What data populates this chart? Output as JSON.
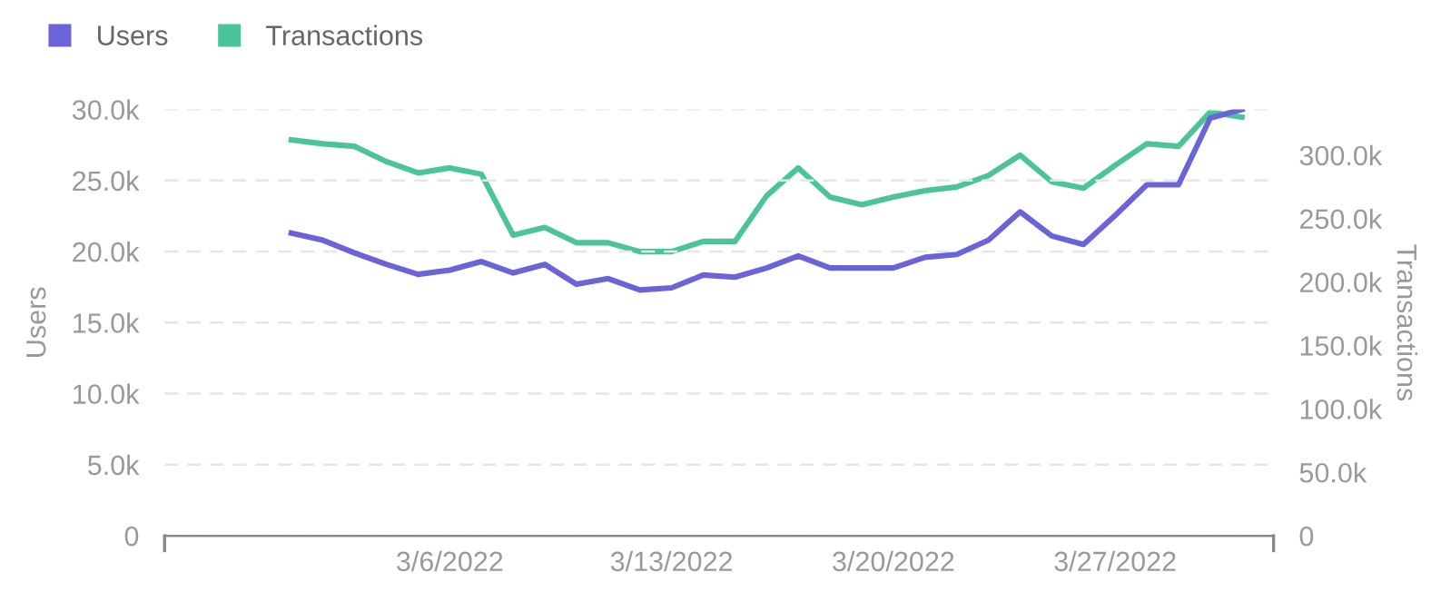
{
  "chart_data": {
    "type": "line",
    "ylabel": "Users",
    "y2label": "Transactions",
    "x": [
      "2022-03-01",
      "2022-03-02",
      "2022-03-03",
      "2022-03-04",
      "2022-03-05",
      "2022-03-06",
      "2022-03-07",
      "2022-03-08",
      "2022-03-09",
      "2022-03-10",
      "2022-03-11",
      "2022-03-12",
      "2022-03-13",
      "2022-03-14",
      "2022-03-15",
      "2022-03-16",
      "2022-03-17",
      "2022-03-18",
      "2022-03-19",
      "2022-03-20",
      "2022-03-21",
      "2022-03-22",
      "2022-03-23",
      "2022-03-24",
      "2022-03-25",
      "2022-03-26",
      "2022-03-27",
      "2022-03-28",
      "2022-03-29",
      "2022-03-30",
      "2022-03-31"
    ],
    "series": [
      {
        "name": "Users",
        "color": "#6b63d8",
        "values": [
          21300,
          20800,
          19900,
          19100,
          18400,
          18700,
          19300,
          18500,
          19100,
          17700,
          18100,
          17300,
          17450,
          18350,
          18200,
          18850,
          19700,
          18850,
          18850,
          18850,
          19600,
          19800,
          20800,
          22800,
          21100,
          20500,
          22550,
          24700,
          24700,
          29400,
          30000
        ]
      },
      {
        "name": "Transactions",
        "color": "#4cc49a",
        "axis": "y2",
        "values": [
          312000,
          309000,
          307000,
          295000,
          286000,
          290000,
          285000,
          237000,
          243000,
          231000,
          231000,
          224000,
          224000,
          232000,
          232000,
          268000,
          290000,
          267000,
          261000,
          267000,
          272000,
          275000,
          284000,
          300000,
          279000,
          274000,
          292000,
          309000,
          307000,
          334000,
          330000
        ]
      }
    ],
    "xticks": [
      {
        "value": "2022-03-06",
        "label": "3/6/2022"
      },
      {
        "value": "2022-03-13",
        "label": "3/13/2022"
      },
      {
        "value": "2022-03-20",
        "label": "3/20/2022"
      },
      {
        "value": "2022-03-27",
        "label": "3/27/2022"
      }
    ],
    "xlim": [
      "2022-02-25",
      "2022-04-01"
    ],
    "ylim": [
      0,
      30000
    ],
    "yticks": [
      {
        "value": 0,
        "label": "0"
      },
      {
        "value": 5000,
        "label": "5.0k"
      },
      {
        "value": 10000,
        "label": "10.0k"
      },
      {
        "value": 15000,
        "label": "15.0k"
      },
      {
        "value": 20000,
        "label": "20.0k"
      },
      {
        "value": 25000,
        "label": "25.0k"
      },
      {
        "value": 30000,
        "label": "30.0k"
      }
    ],
    "y2lim": [
      0,
      336000
    ],
    "y2ticks": [
      {
        "value": 0,
        "label": "0"
      },
      {
        "value": 50000,
        "label": "50.0k"
      },
      {
        "value": 100000,
        "label": "100.0k"
      },
      {
        "value": 150000,
        "label": "150.0k"
      },
      {
        "value": 200000,
        "label": "200.0k"
      },
      {
        "value": 250000,
        "label": "250.0k"
      },
      {
        "value": 300000,
        "label": "300.0k"
      }
    ],
    "grid": "y",
    "legend": "top left",
    "marker": "none",
    "line_style": "solid"
  }
}
